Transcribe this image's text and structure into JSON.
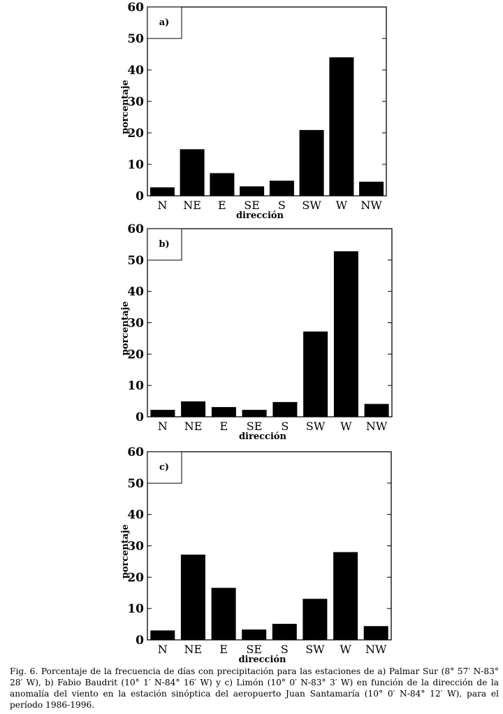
{
  "caption": "Fig. 6. Porcentaje de la frecuencia de días con precipitación para las estaciones de a) Palmar Sur (8° 57′ N-83° 28′ W), b) Fabio Baudrit (10° 1′ N-84° 16′ W) y c) Limón (10° 0′ N-83° 3′ W) en función de la dirección de la anomalía del viento en la estación sinóptica del aeropuerto Juan Santamaría (10° 0′ N-84° 12′ W), para el período 1986-1996.",
  "colors": {
    "bar": "#000000",
    "frame": "#000000",
    "background": "#ffffff"
  },
  "chart_data": [
    {
      "type": "bar",
      "panel": "a)",
      "categories": [
        "N",
        "NE",
        "E",
        "SE",
        "S",
        "SW",
        "W",
        "NW"
      ],
      "values": [
        2.7,
        14.8,
        7.2,
        3.0,
        4.8,
        20.9,
        44.0,
        4.5
      ],
      "xlabel": "dirección",
      "ylabel": "porcentaje",
      "ylim": [
        0,
        60
      ],
      "yticks": [
        0,
        10,
        20,
        30,
        40,
        50,
        60
      ],
      "grid": false
    },
    {
      "type": "bar",
      "panel": "b)",
      "categories": [
        "N",
        "NE",
        "E",
        "SE",
        "S",
        "SW",
        "W",
        "NW"
      ],
      "values": [
        2.2,
        4.9,
        3.1,
        2.2,
        4.7,
        27.2,
        52.8,
        4.1
      ],
      "xlabel": "dirección",
      "ylabel": "porcentaje",
      "ylim": [
        0,
        60
      ],
      "yticks": [
        0,
        10,
        20,
        30,
        40,
        50,
        60
      ],
      "grid": false
    },
    {
      "type": "bar",
      "panel": "c)",
      "categories": [
        "N",
        "NE",
        "E",
        "SE",
        "S",
        "SW",
        "W",
        "NW"
      ],
      "values": [
        3.0,
        27.2,
        16.6,
        3.3,
        5.1,
        13.1,
        28.0,
        4.4
      ],
      "xlabel": "dirección",
      "ylabel": "porcentaje",
      "ylim": [
        0,
        60
      ],
      "yticks": [
        0,
        10,
        20,
        30,
        40,
        50,
        60
      ],
      "grid": false
    }
  ]
}
